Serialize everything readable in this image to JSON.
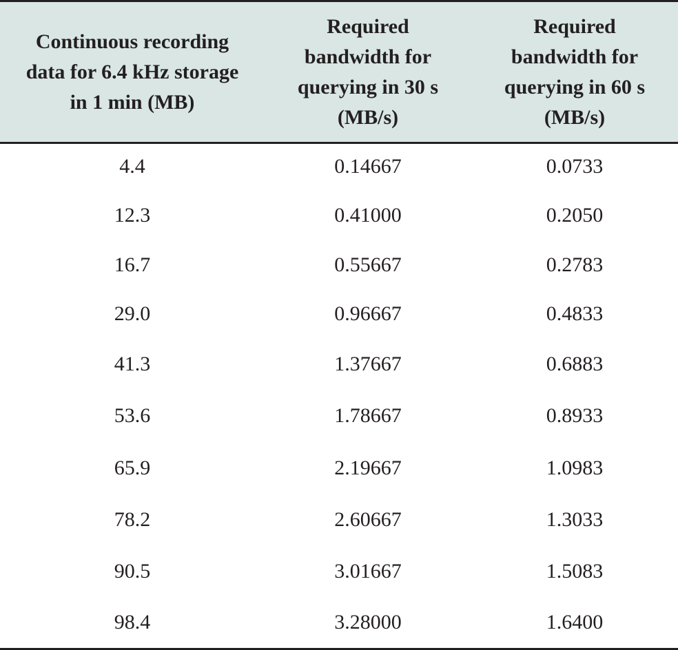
{
  "table": {
    "headers": [
      [
        "Continuous recording",
        "data for 6.4 kHz storage",
        "in 1 min (MB)"
      ],
      [
        "Required",
        "bandwidth for",
        "querying in 30 s",
        "(MB/s)"
      ],
      [
        "Required",
        "bandwidth for",
        "querying in 60 s",
        "(MB/s)"
      ]
    ],
    "rows": [
      [
        "4.4",
        "0.14667",
        "0.0733"
      ],
      [
        "12.3",
        "0.41000",
        "0.2050"
      ],
      [
        "16.7",
        "0.55667",
        "0.2783"
      ],
      [
        "29.0",
        "0.96667",
        "0.4833"
      ],
      [
        "41.3",
        "1.37667",
        "0.6883"
      ],
      [
        "53.6",
        "1.78667",
        "0.8933"
      ],
      [
        "65.9",
        "2.19667",
        "1.0983"
      ],
      [
        "78.2",
        "2.60667",
        "1.3033"
      ],
      [
        "90.5",
        "3.01667",
        "1.5083"
      ],
      [
        "98.4",
        "3.28000",
        "1.6400"
      ]
    ]
  }
}
